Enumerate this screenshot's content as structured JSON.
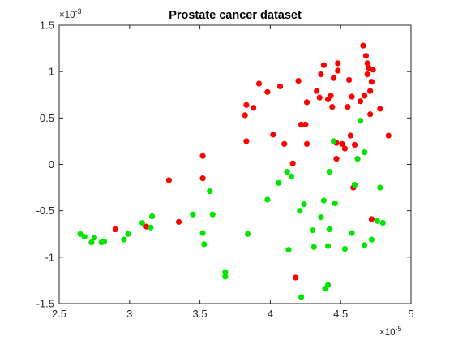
{
  "chart_data": {
    "type": "scatter",
    "title": "Prostate cancer dataset",
    "xlabel": "",
    "ylabel": "",
    "xlim": [
      2.5e-05,
      5e-05
    ],
    "ylim": [
      -0.0015,
      0.0015
    ],
    "x_ticks": [
      2.5e-05,
      3e-05,
      3.5e-05,
      4e-05,
      4.5e-05,
      5e-05
    ],
    "x_tick_labels": [
      "2.5",
      "3",
      "3.5",
      "4",
      "4.5",
      "5"
    ],
    "y_ticks": [
      -0.0015,
      -0.001,
      -0.0005,
      0,
      0.0005,
      0.001,
      0.0015
    ],
    "y_tick_labels": [
      "-1.5",
      "-1",
      "-0.5",
      "0",
      "0.5",
      "1",
      "1.5"
    ],
    "x_multiplier": "×10",
    "x_exponent": "-5",
    "y_multiplier": "×10",
    "y_exponent": "-3",
    "grid": false,
    "box": true,
    "series": [
      {
        "color": "#ff0000",
        "points": [
          [
            2.9e-05,
            -0.0007
          ],
          [
            3.12e-05,
            -0.00067
          ],
          [
            3.28e-05,
            -0.00017
          ],
          [
            3.35e-05,
            -0.00062
          ],
          [
            3.52e-05,
            9e-05
          ],
          [
            3.52e-05,
            -0.00015
          ],
          [
            3.82e-05,
            0.00053
          ],
          [
            3.83e-05,
            0.00064
          ],
          [
            3.83e-05,
            0.00025
          ],
          [
            3.88e-05,
            0.00061
          ],
          [
            3.92e-05,
            0.00087
          ],
          [
            3.98e-05,
            0.00078
          ],
          [
            4.02e-05,
            0.00032
          ],
          [
            4.07e-05,
            0.00084
          ],
          [
            4.1e-05,
            0.00022
          ],
          [
            4.16e-05,
            1e-05
          ],
          [
            4.2e-05,
            0.0009
          ],
          [
            4.22e-05,
            0.00043
          ],
          [
            4.25e-05,
            0.00043
          ],
          [
            4.26e-05,
            0.00067
          ],
          [
            4.26e-05,
            0.00022
          ],
          [
            4.18e-05,
            -0.00122
          ],
          [
            4.33e-05,
            0.00079
          ],
          [
            4.35e-05,
            0.00072
          ],
          [
            4.36e-05,
            0.00097
          ],
          [
            4.38e-05,
            0.00107
          ],
          [
            4.41e-05,
            0.0007
          ],
          [
            4.43e-05,
            0.00074
          ],
          [
            4.44e-05,
            0.00062
          ],
          [
            4.45e-05,
            0.00093
          ],
          [
            4.47e-05,
            0.00023
          ],
          [
            4.47e-05,
            6e-05
          ],
          [
            4.48e-05,
            0.00101
          ],
          [
            4.48e-05,
            0.00109
          ],
          [
            4.51e-05,
            0.00022
          ],
          [
            4.53e-05,
            0.00017
          ],
          [
            4.55e-05,
            0.00062
          ],
          [
            4.56e-05,
            0.00091
          ],
          [
            4.57e-05,
            0.00031
          ],
          [
            4.58e-05,
            0.00073
          ],
          [
            4.6e-05,
            0.00021
          ],
          [
            4.59e-05,
            -0.00025
          ],
          [
            4.64e-05,
            0.00068
          ],
          [
            4.66e-05,
            0.00128
          ],
          [
            4.67e-05,
            0.00074
          ],
          [
            4.68e-05,
            0.00117
          ],
          [
            4.69e-05,
            0.00109
          ],
          [
            4.69e-05,
            0.00097
          ],
          [
            4.7e-05,
            0.00104
          ],
          [
            4.71e-05,
            0.00054
          ],
          [
            4.71e-05,
            0.00079
          ],
          [
            4.72e-05,
            -0.00059
          ],
          [
            4.73e-05,
            0.00102
          ],
          [
            4.72e-05,
            0.00089
          ],
          [
            4.78e-05,
            0.0006
          ],
          [
            4.84e-05,
            0.00031
          ]
        ]
      },
      {
        "color": "#00e600",
        "points": [
          [
            2.65e-05,
            -0.00075
          ],
          [
            2.68e-05,
            -0.00078
          ],
          [
            2.73e-05,
            -0.00084
          ],
          [
            2.75e-05,
            -0.00079
          ],
          [
            2.8e-05,
            -0.00084
          ],
          [
            2.82e-05,
            -0.00083
          ],
          [
            2.96e-05,
            -0.00081
          ],
          [
            2.99e-05,
            -0.00075
          ],
          [
            3.09e-05,
            -0.00063
          ],
          [
            3.15e-05,
            -0.00068
          ],
          [
            3.16e-05,
            -0.00056
          ],
          [
            3.45e-05,
            -0.00054
          ],
          [
            3.52e-05,
            -0.00074
          ],
          [
            3.53e-05,
            -0.00086
          ],
          [
            3.57e-05,
            -0.00029
          ],
          [
            3.59e-05,
            -0.00054
          ],
          [
            3.68e-05,
            -0.00116
          ],
          [
            3.68e-05,
            -0.00121
          ],
          [
            3.84e-05,
            -0.00075
          ],
          [
            3.98e-05,
            -0.00038
          ],
          [
            4.06e-05,
            -0.0002
          ],
          [
            4.12e-05,
            -8e-05
          ],
          [
            4.13e-05,
            -0.00092
          ],
          [
            4.15e-05,
            -0.00013
          ],
          [
            4.21e-05,
            -0.0005
          ],
          [
            4.22e-05,
            -0.00143
          ],
          [
            4.24e-05,
            -0.00043
          ],
          [
            4.3e-05,
            -0.00071
          ],
          [
            4.31e-05,
            -0.00089
          ],
          [
            4.36e-05,
            -0.00057
          ],
          [
            4.38e-05,
            -0.00039
          ],
          [
            4.39e-05,
            -0.00134
          ],
          [
            4.41e-05,
            -0.0013
          ],
          [
            4.41e-05,
            -0.00088
          ],
          [
            4.42e-05,
            -0.0007
          ],
          [
            4.42e-05,
            -8e-05
          ],
          [
            4.45e-05,
            0.00025
          ],
          [
            4.46e-05,
            -0.00042
          ],
          [
            4.53e-05,
            -0.00091
          ],
          [
            4.58e-05,
            -0.00074
          ],
          [
            4.6e-05,
            -0.00022
          ],
          [
            4.62e-05,
            6e-05
          ],
          [
            4.64e-05,
            0.00047
          ],
          [
            4.67e-05,
            0.00013
          ],
          [
            4.67e-05,
            -0.00087
          ],
          [
            4.72e-05,
            -0.00081
          ],
          [
            4.76e-05,
            -0.00061
          ],
          [
            4.78e-05,
            -0.00025
          ],
          [
            4.8e-05,
            -0.00063
          ]
        ]
      }
    ]
  }
}
